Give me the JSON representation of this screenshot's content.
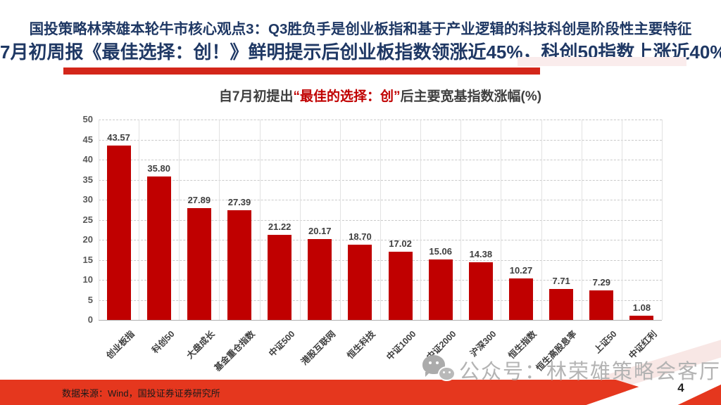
{
  "slide": {
    "headline_line1": "国投策略林荣雄本轮牛市核心观点3：Q3胜负手是创业板指和基于产业逻辑的科技科创是阶段性主要特征",
    "headline_line2": "7月初周报《最佳选择：创！》鲜明提示后创业板指数领涨近45%，科创50指数上涨近40%",
    "footer_source": "数据来源：Wind，国投证券证券研究所",
    "watermark_text": "公众号：林荣雄策略会客厅",
    "page_number": "4"
  },
  "chart_data": {
    "type": "bar",
    "title_prefix": "自7月初提出",
    "title_highlight": "“最佳的选择：创”",
    "title_suffix": "后主要宽基指数涨幅(%)",
    "categories": [
      "创业板指",
      "科创50",
      "大盘成长",
      "基金重仓指数",
      "中证500",
      "港股互联网",
      "恒生科技",
      "中证1000",
      "中证2000",
      "沪深300",
      "恒生指数",
      "恒生高股息率",
      "上证50",
      "中证红利"
    ],
    "values": [
      43.57,
      35.8,
      27.89,
      27.39,
      21.22,
      20.17,
      18.7,
      17.02,
      15.06,
      14.38,
      10.27,
      7.71,
      7.29,
      1.08
    ],
    "xlabel": "",
    "ylabel": "",
    "ylim": [
      0,
      50
    ],
    "ytick_step": 5,
    "grid": "horizontal-dashed-and-vertical-solid",
    "legend": "none",
    "bar_color": "#C00000",
    "value_label_decimals": 2
  },
  "colors": {
    "headline_navy": "#1F3864",
    "accent_red": "#C00000",
    "underline_red": "#D3261A",
    "footer_red": "#E5371E",
    "watermark_gray": "#B3B3B3",
    "gridline_gray": "#C9C9C9"
  }
}
